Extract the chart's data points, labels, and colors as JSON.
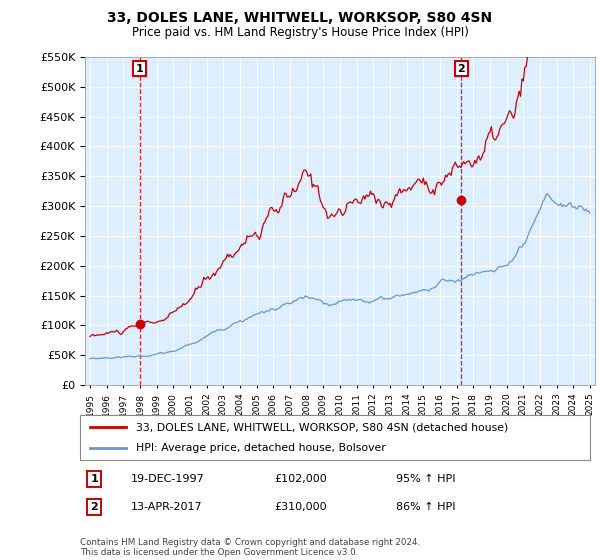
{
  "title": "33, DOLES LANE, WHITWELL, WORKSOP, S80 4SN",
  "subtitle": "Price paid vs. HM Land Registry's House Price Index (HPI)",
  "legend_line1": "33, DOLES LANE, WHITWELL, WORKSOP, S80 4SN (detached house)",
  "legend_line2": "HPI: Average price, detached house, Bolsover",
  "sale1_date": "19-DEC-1997",
  "sale1_price": 102000,
  "sale1_label": "95% ↑ HPI",
  "sale2_date": "13-APR-2017",
  "sale2_price": 310000,
  "sale2_label": "86% ↑ HPI",
  "footer": "Contains HM Land Registry data © Crown copyright and database right 2024.\nThis data is licensed under the Open Government Licence v3.0.",
  "red_color": "#cc0000",
  "blue_color": "#6699cc",
  "chart_bg": "#ddeeff",
  "ylim": [
    0,
    550000
  ],
  "yticks": [
    0,
    50000,
    100000,
    150000,
    200000,
    250000,
    300000,
    350000,
    400000,
    450000,
    500000,
    550000
  ],
  "x_start_year": 1995,
  "x_end_year": 2025,
  "sale1_x": 1997.97,
  "sale2_x": 2017.28
}
